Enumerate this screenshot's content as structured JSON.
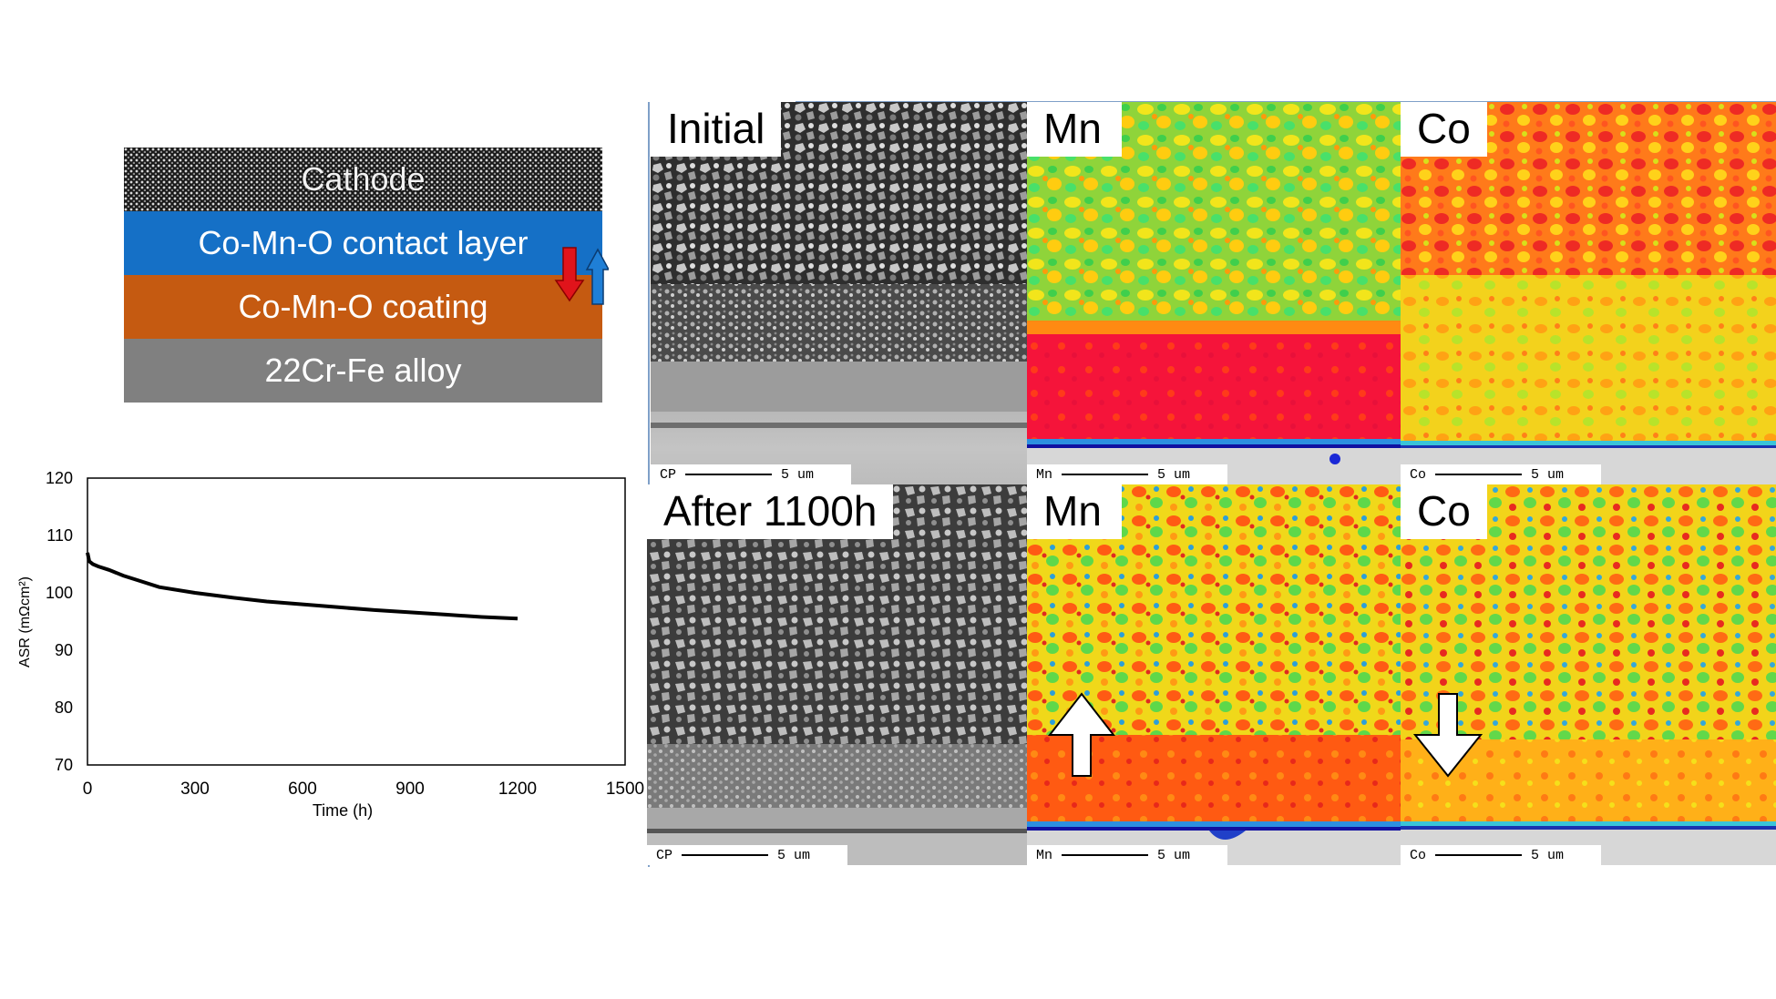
{
  "layers": {
    "cathode": "Cathode",
    "contact": "Co-Mn-O contact layer",
    "coating": "Co-Mn-O coating",
    "alloy": "22Cr-Fe alloy"
  },
  "panel_labels": {
    "initial": "Initial",
    "after": "After 1100h",
    "mn": "Mn",
    "co": "Co"
  },
  "scale_bars": {
    "cp": "CP",
    "mn": "Mn",
    "co": "Co",
    "length": "5 um"
  },
  "colors": {
    "contact_layer": "#1570c6",
    "coating": "#c55a11",
    "alloy": "#808080",
    "arrow_down": "#e0141b",
    "arrow_up": "#1f7fd6"
  },
  "chart_data": {
    "type": "line",
    "xlabel": "Time (h)",
    "ylabel": "ASR (mΩcm²)",
    "xlim": [
      0,
      1500
    ],
    "ylim": [
      70,
      120
    ],
    "xticks": [
      0,
      300,
      600,
      900,
      1200,
      1500
    ],
    "yticks": [
      70,
      80,
      90,
      100,
      110,
      120
    ],
    "grid": false,
    "series": [
      {
        "x": [
          0,
          5,
          15,
          30,
          60,
          100,
          150,
          200,
          300,
          400,
          500,
          600,
          700,
          800,
          900,
          1000,
          1100,
          1200
        ],
        "y": [
          107,
          105.5,
          105,
          104.6,
          104,
          103,
          102,
          101,
          100,
          99.2,
          98.5,
          98,
          97.5,
          97,
          96.6,
          96.2,
          95.8,
          95.5
        ]
      }
    ]
  }
}
